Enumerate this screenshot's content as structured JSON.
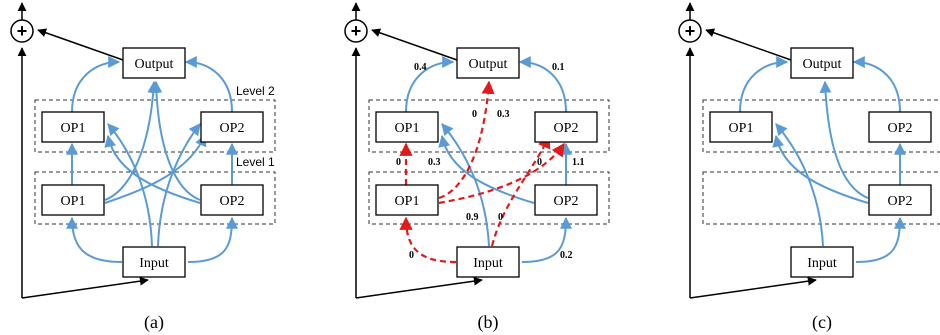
{
  "colors": {
    "edge_blue": "#5b9bd5",
    "edge_red": "#e31a1c"
  },
  "panels": [
    {
      "caption": "(a)",
      "labels": {
        "output": "Output",
        "input": "Input",
        "op1_top": "OP1",
        "op2_top": "OP2",
        "op1_bottom": "OP1",
        "op2_bottom": "OP2",
        "level2": "Level 2",
        "level1": "Level 1",
        "plus": "+"
      }
    },
    {
      "caption": "(b)",
      "labels": {
        "output": "Output",
        "input": "Input",
        "op1_top": "OP1",
        "op2_top": "OP2",
        "op1_bottom": "OP1",
        "op2_bottom": "OP2",
        "plus": "+"
      },
      "weights": {
        "w_op1t_out": "0.4",
        "w_op2t_out": "0.1",
        "w_op1b_out": "0",
        "w_op2b_out": "0.3",
        "w_op1b_op1t": "0",
        "w_op2b_op1t": "0.3",
        "w_op1b_op2t": "0",
        "w_op2b_op2t": "1.1",
        "w_in_op1b": "0",
        "w_in_op1t": "0.9",
        "w_in_op2t": "0",
        "w_in_op2b": "0.2"
      }
    },
    {
      "caption": "(c)",
      "labels": {
        "output": "Output",
        "input": "Input",
        "op1_top": "OP1",
        "op2_top": "OP2",
        "op2_bottom": "OP2",
        "plus": "+"
      }
    }
  ]
}
